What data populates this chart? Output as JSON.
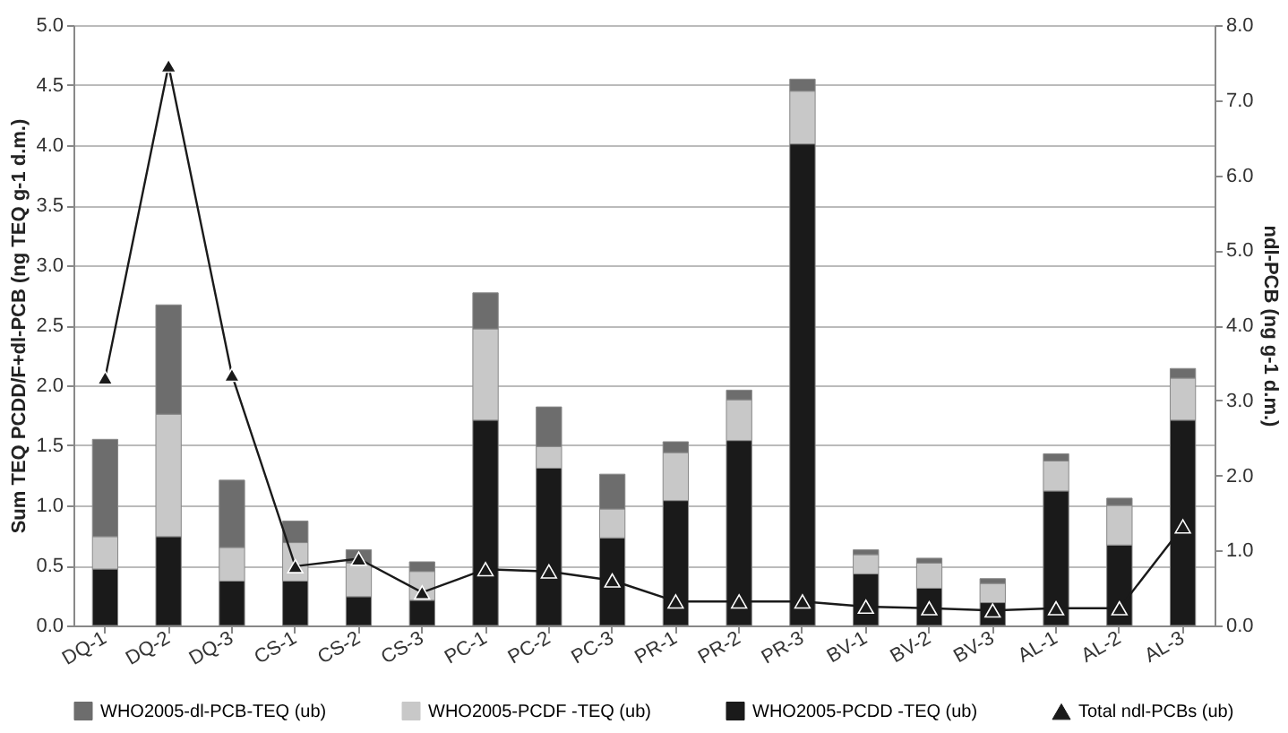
{
  "chart_data": {
    "type": "bar",
    "stacked": true,
    "ylabel": "Sum TEQ PCDD/F+dl-PCB (ng TEQ g-1 d.m.)",
    "y2label": "ndl-PCB (ng g-1 d.m.)",
    "categories": [
      "DQ-1",
      "DQ-2",
      "DQ-3",
      "CS-1",
      "CS-2",
      "CS-3",
      "PC-1",
      "PC-2",
      "PC-3",
      "PR-1",
      "PR-2",
      "PR-3",
      "BV-1",
      "BV-2",
      "BV-3",
      "AL-1",
      "AL-2",
      "AL-3"
    ],
    "series": [
      {
        "name": "WHO2005-PCDD -TEQ (ub)",
        "color": "#1a1a1a",
        "values": [
          0.47,
          0.74,
          0.37,
          0.37,
          0.24,
          0.21,
          1.71,
          1.31,
          0.73,
          1.04,
          1.54,
          4.01,
          0.43,
          0.31,
          0.19,
          1.12,
          0.67,
          1.71
        ]
      },
      {
        "name": "WHO2005-PCDF -TEQ (ub)",
        "color": "#c8c8c8",
        "values": [
          0.27,
          1.02,
          0.28,
          0.32,
          0.28,
          0.24,
          0.76,
          0.18,
          0.24,
          0.4,
          0.34,
          0.44,
          0.16,
          0.21,
          0.16,
          0.25,
          0.33,
          0.35
        ]
      },
      {
        "name": "WHO2005-dl-PCB-TEQ (ub)",
        "color": "#6d6d6d",
        "values": [
          0.81,
          0.91,
          0.56,
          0.18,
          0.11,
          0.08,
          0.3,
          0.33,
          0.29,
          0.09,
          0.08,
          0.1,
          0.04,
          0.04,
          0.04,
          0.06,
          0.06,
          0.08
        ]
      },
      {
        "name": "Total ndl-PCBs (ub)",
        "type": "line",
        "axis": "y2",
        "color": "#1a1a1a",
        "values": [
          3.3,
          7.46,
          3.34,
          0.79,
          0.89,
          0.44,
          0.75,
          0.72,
          0.6,
          0.32,
          0.32,
          0.32,
          0.25,
          0.23,
          0.2,
          0.23,
          0.23,
          1.32
        ]
      }
    ],
    "ylim": [
      0,
      5
    ],
    "yticks": [
      {
        "value": 0,
        "label": "0.0"
      },
      0.5,
      {
        "value": 1,
        "label": "1.0"
      },
      1.5,
      {
        "value": 2,
        "label": "2.0"
      },
      2.5,
      {
        "value": 3,
        "label": "3.0"
      },
      3.5,
      {
        "value": 4,
        "label": "4.0"
      },
      4.5,
      {
        "value": 5,
        "label": "5.0"
      }
    ],
    "y2lim": [
      0,
      8
    ],
    "y2ticks": [
      {
        "value": 0,
        "label": "0.0"
      },
      {
        "value": 1,
        "label": "1.0"
      },
      {
        "value": 2,
        "label": "2.0"
      },
      {
        "value": 3,
        "label": "3.0"
      },
      {
        "value": 4,
        "label": "4.0"
      },
      {
        "value": 5,
        "label": "5.0"
      },
      {
        "value": 6,
        "label": "6.0"
      },
      {
        "value": 7,
        "label": "7.0"
      },
      {
        "value": 8,
        "label": "8.0"
      }
    ],
    "grid": "y",
    "legend": "bottom",
    "marker": "triangle",
    "line_style": "solid"
  }
}
